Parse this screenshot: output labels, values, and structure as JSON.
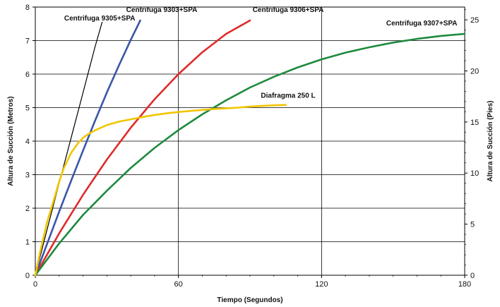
{
  "chart_data": {
    "type": "line",
    "title": "",
    "xlabel": "Tiempo (Segundos)",
    "ylabel": "Altura de Succión (Metros)",
    "y2label": "Altura de Succión (Pies)",
    "xlim": [
      0,
      180
    ],
    "ylim": [
      0,
      8
    ],
    "y2lim": [
      0,
      26.25
    ],
    "x_ticks": [
      0,
      60,
      120,
      180
    ],
    "y_ticks": [
      0,
      1,
      2,
      3,
      4,
      5,
      6,
      7,
      8
    ],
    "y2_ticks": [
      0,
      5,
      10,
      15,
      20,
      25
    ],
    "grid": true,
    "legend": "none",
    "series": [
      {
        "name": "Centrifuga 9305+SPA",
        "color": "#000000",
        "x": [
          0,
          5,
          10,
          15,
          20,
          25,
          28
        ],
        "y": [
          0,
          1.38,
          2.75,
          4.1,
          5.45,
          6.8,
          7.55
        ]
      },
      {
        "name": "Centrifuga 9303+SPA",
        "color": "#3a56a8",
        "x": [
          0,
          5,
          10,
          15,
          20,
          25,
          30,
          35,
          40,
          44
        ],
        "y": [
          0,
          0.95,
          1.9,
          2.82,
          3.72,
          4.6,
          5.45,
          6.25,
          7.02,
          7.6
        ]
      },
      {
        "name": "Centrifuga 9306+SPA",
        "color": "#e02a2a",
        "x": [
          0,
          10,
          20,
          30,
          40,
          50,
          60,
          70,
          80,
          90
        ],
        "y": [
          0,
          1.25,
          2.4,
          3.45,
          4.4,
          5.25,
          6.0,
          6.65,
          7.2,
          7.6
        ]
      },
      {
        "name": "Centrifuga 9307+SPA",
        "color": "#1e8a3e",
        "x": [
          0,
          10,
          20,
          30,
          40,
          50,
          60,
          70,
          80,
          90,
          100,
          110,
          120,
          130,
          140,
          150,
          160,
          170,
          180
        ],
        "y": [
          0,
          0.95,
          1.8,
          2.52,
          3.2,
          3.8,
          4.33,
          4.8,
          5.22,
          5.6,
          5.92,
          6.2,
          6.44,
          6.64,
          6.8,
          6.94,
          7.05,
          7.14,
          7.2
        ]
      },
      {
        "name": "Diafragma 250 L",
        "color": "#f2c500",
        "x": [
          0,
          2,
          5,
          8,
          10,
          12,
          15,
          18,
          20,
          22,
          25,
          30,
          35,
          40,
          45,
          50,
          55,
          60,
          65,
          70,
          75,
          80,
          85,
          90,
          95,
          100,
          105
        ],
        "y": [
          0,
          0.7,
          1.6,
          2.3,
          2.8,
          3.2,
          3.65,
          3.95,
          4.1,
          4.2,
          4.32,
          4.48,
          4.58,
          4.65,
          4.72,
          4.78,
          4.83,
          4.87,
          4.9,
          4.93,
          4.96,
          4.98,
          5.0,
          5.03,
          5.05,
          5.07,
          5.08
        ]
      }
    ],
    "annotations": [
      {
        "text": "Centrifuga 9305+SPA",
        "x": 27,
        "y": 7.6
      },
      {
        "text": "Centrifuga 9303+SPA",
        "x": 53,
        "y": 7.85
      },
      {
        "text": "Centrifuga 9306+SPA",
        "x": 106,
        "y": 7.85
      },
      {
        "text": "Centrifuga 9307+SPA",
        "x": 162,
        "y": 7.45
      },
      {
        "text": "Diafragma 250 L",
        "x": 106,
        "y": 5.3
      }
    ]
  }
}
